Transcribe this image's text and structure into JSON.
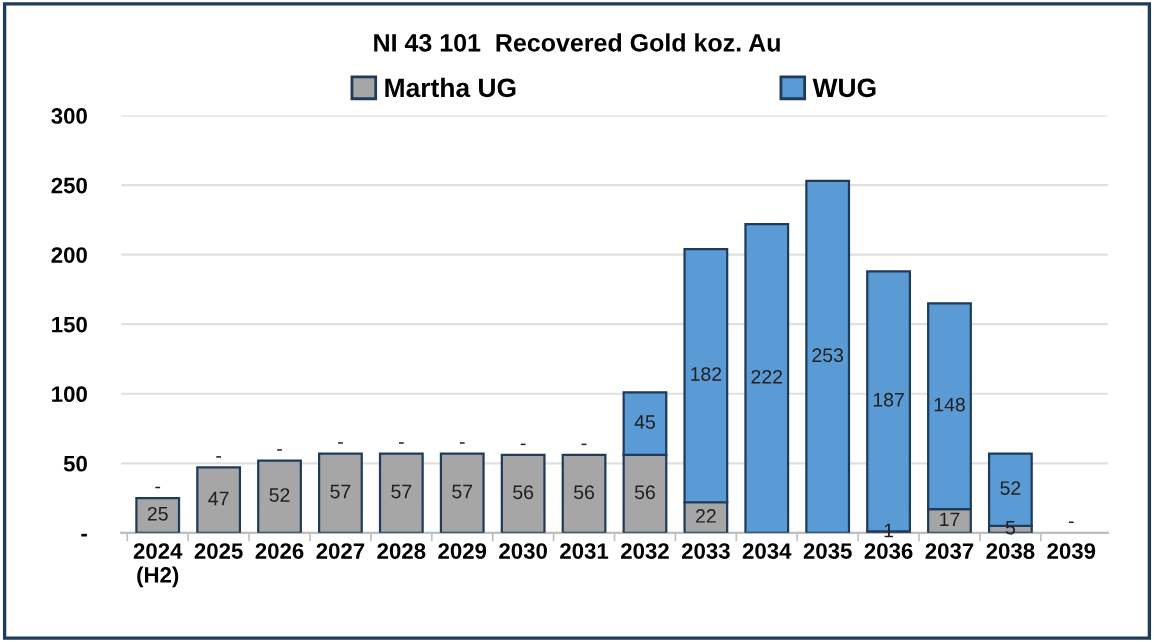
{
  "chart_data": {
    "type": "bar",
    "title": "NI 43 101  Recovered Gold koz. Au",
    "stacked": true,
    "categories": [
      "2024\n(H2)",
      "2025",
      "2026",
      "2027",
      "2028",
      "2029",
      "2030",
      "2031",
      "2032",
      "2033",
      "2034",
      "2035",
      "2036",
      "2037",
      "2038",
      "2039"
    ],
    "series": [
      {
        "name": "Martha UG",
        "color": "#a6a6a6",
        "values": [
          25,
          47,
          52,
          57,
          57,
          57,
          56,
          56,
          56,
          22,
          0,
          0,
          1,
          17,
          5,
          0
        ],
        "value_labels": [
          "25",
          "47",
          "52",
          "57",
          "57",
          "57",
          "56",
          "56",
          "56",
          "22",
          null,
          null,
          "1",
          "17",
          "5",
          "-"
        ]
      },
      {
        "name": "WUG",
        "color": "#5b9bd5",
        "values": [
          0,
          0,
          0,
          0,
          0,
          0,
          0,
          0,
          45,
          182,
          222,
          253,
          187,
          148,
          52,
          0
        ],
        "value_labels": [
          "-",
          "-",
          "-",
          "-",
          "-",
          "-",
          "-",
          "-",
          "45",
          "182",
          "222",
          "253",
          "187",
          "148",
          "52",
          null
        ]
      }
    ],
    "ylim": [
      0,
      300
    ],
    "yticks": [
      {
        "value": 0,
        "label": "-"
      },
      50,
      100,
      150,
      200,
      250,
      300
    ],
    "grid": "y",
    "legend": "top"
  }
}
